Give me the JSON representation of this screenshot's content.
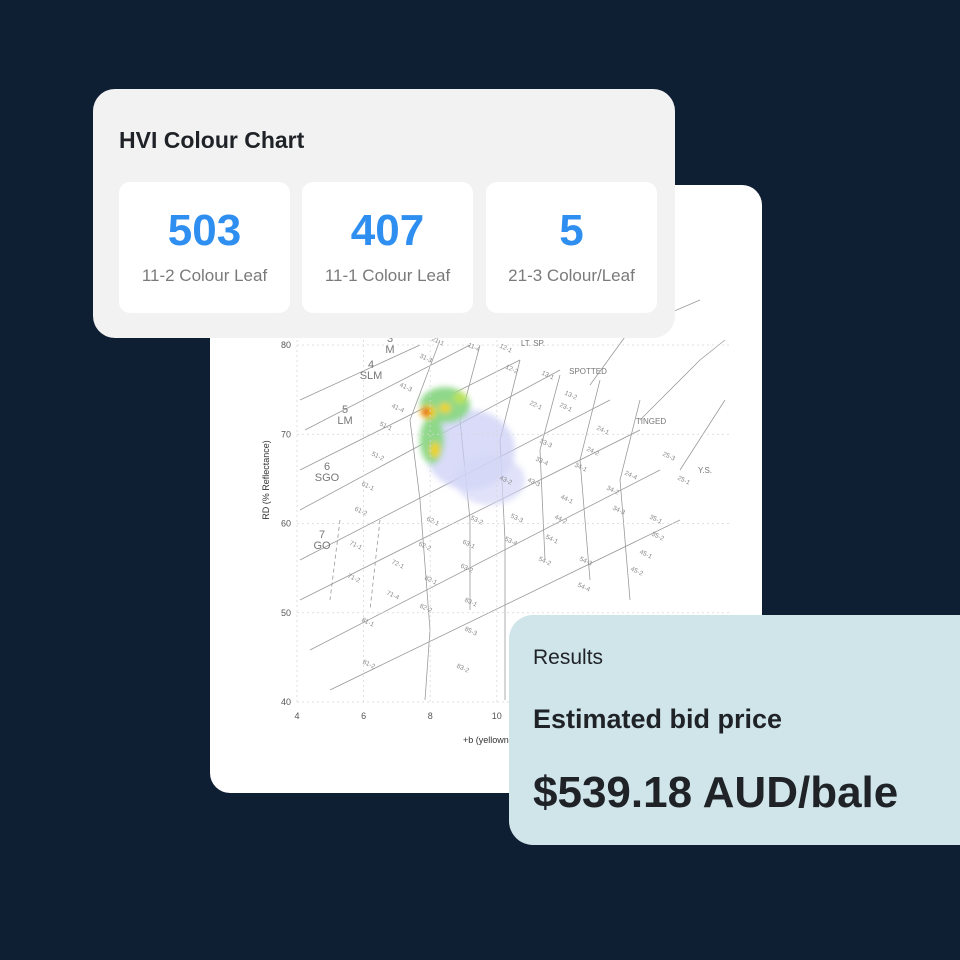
{
  "hvi_card": {
    "title": "HVI Colour Chart",
    "stats": [
      {
        "value": 503,
        "label": "11-2 Colour Leaf"
      },
      {
        "value": 407,
        "label": "11-1 Colour Leaf"
      },
      {
        "value": 5,
        "label": "21-3 Colour/Leaf"
      }
    ]
  },
  "colour_chart": {
    "y_axis_label": "RD (% Reflectance)",
    "x_axis_label": "+b (yellowness)",
    "yticks": [
      40,
      50,
      60,
      70,
      80
    ],
    "xticks": [
      4,
      6,
      8,
      10
    ],
    "grades": [
      {
        "number": "3",
        "name": "M"
      },
      {
        "number": "4",
        "name": "SLM"
      },
      {
        "number": "5",
        "name": "LM"
      },
      {
        "number": "6",
        "name": "SGO"
      },
      {
        "number": "7",
        "name": "GO"
      }
    ],
    "regions": [
      "LT. SP.",
      "SPOTTED",
      "TINGED",
      "Y.S."
    ],
    "cells": [
      "21-1",
      "11-4",
      "12-1",
      "12-2",
      "13-1",
      "13-2",
      "22-1",
      "23-1",
      "24-1",
      "31-3",
      "41-3",
      "41-4",
      "51-1",
      "51-2",
      "61-1",
      "61-2",
      "71-1",
      "71-2",
      "71-4",
      "81-1",
      "81-2",
      "62-1",
      "62-2",
      "72-1",
      "82-1",
      "82-2",
      "63-1",
      "63-2",
      "83-1",
      "83-2",
      "85-3",
      "53-2",
      "53-3",
      "53-4",
      "43-2",
      "43-3",
      "33-3",
      "33-4",
      "44-1",
      "44-2",
      "54-1",
      "54-2",
      "54-3",
      "54-4",
      "34-1",
      "34-2",
      "34-3",
      "24-2",
      "24-4",
      "25-1",
      "25-3",
      "35-1",
      "35-2",
      "45-1",
      "45-2"
    ]
  },
  "results": {
    "title": "Results",
    "label": "Estimated bid price",
    "value": "$539.18 AUD/bale"
  }
}
